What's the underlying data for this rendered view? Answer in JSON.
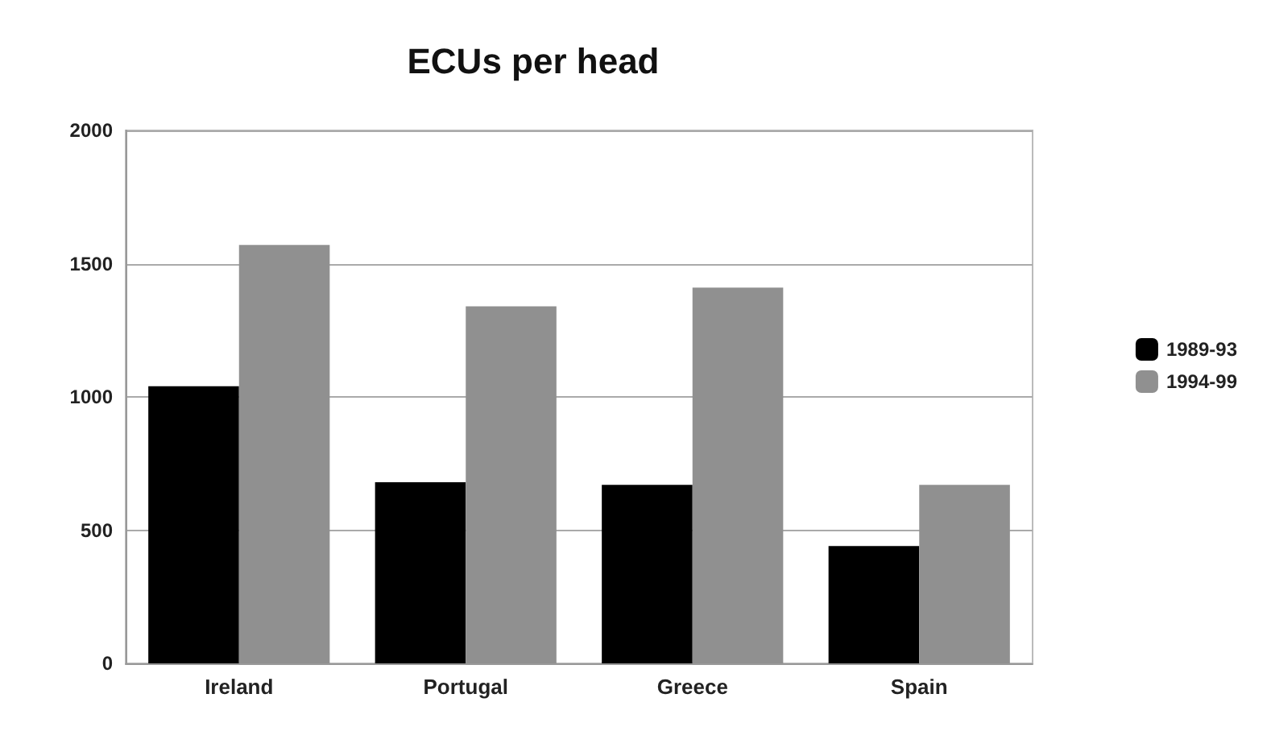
{
  "chart_data": {
    "type": "bar",
    "title": "ECUs per head",
    "categories": [
      "Ireland",
      "Portugal",
      "Greece",
      "Spain"
    ],
    "series": [
      {
        "name": "1989-93",
        "color": "#000000",
        "values": [
          1040,
          680,
          670,
          440
        ]
      },
      {
        "name": "1994-99",
        "color": "#909090",
        "values": [
          1570,
          1340,
          1410,
          670
        ]
      }
    ],
    "ylim": [
      0,
      2000
    ],
    "yticks": [
      0,
      500,
      1000,
      1500,
      2000
    ],
    "grid": "y",
    "legend": "right"
  }
}
